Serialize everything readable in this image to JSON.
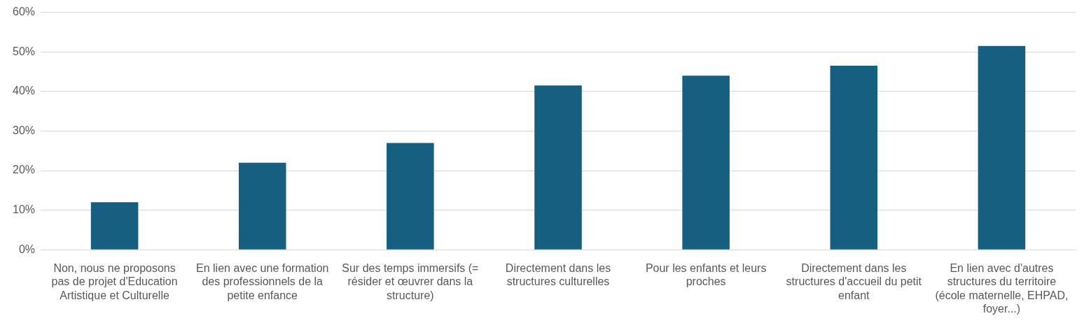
{
  "chart_data": {
    "type": "bar",
    "categories": [
      "Non, nous ne proposons pas de projet d'Education Artistique et Culturelle",
      "En lien avec une formation des professionnels de la petite enfance",
      "Sur des temps immersifs (= résider et œuvrer dans la structure)",
      "Directement dans les structures culturelles",
      "Pour les enfants et leurs proches",
      "Directement dans les structures d'accueil du petit enfant",
      "En lien avec d'autres structures du territoire (école maternelle, EHPAD, foyer...)"
    ],
    "values": [
      0.12,
      0.22,
      0.27,
      0.415,
      0.44,
      0.465,
      0.515
    ],
    "color": "#175f80",
    "ylim": [
      0,
      0.6
    ],
    "yticks": [
      {
        "value": 0,
        "label": "0%"
      },
      {
        "value": 0.1,
        "label": "10%"
      },
      {
        "value": 0.2,
        "label": "20%"
      },
      {
        "value": 0.3,
        "label": "30%"
      },
      {
        "value": 0.4,
        "label": "40%"
      },
      {
        "value": 0.5,
        "label": "50%"
      },
      {
        "value": 0.6,
        "label": "60%"
      }
    ],
    "grid": "y"
  }
}
